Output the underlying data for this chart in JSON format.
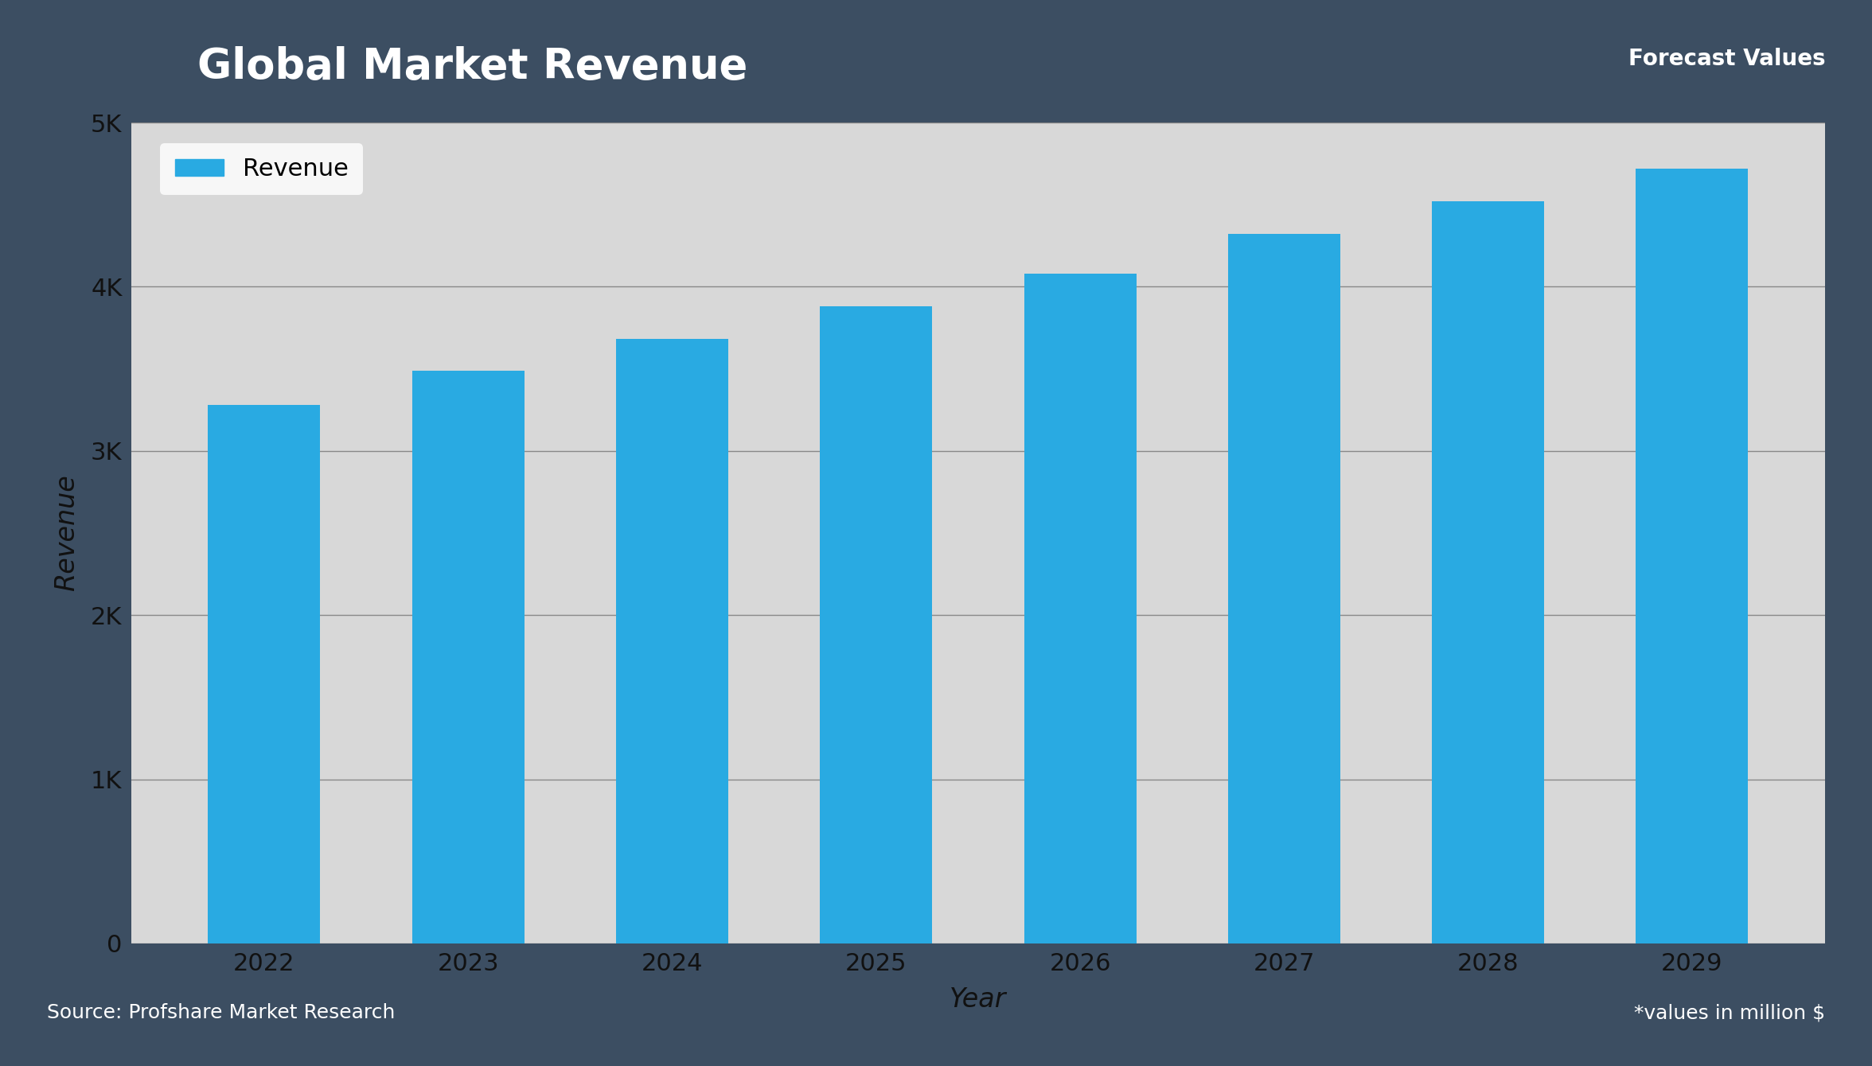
{
  "title": "Global Market Revenue",
  "xlabel": "Year",
  "ylabel": "Revenue",
  "years": [
    2022,
    2023,
    2024,
    2025,
    2026,
    2027,
    2028,
    2029
  ],
  "values": [
    3280,
    3490,
    3680,
    3880,
    4080,
    4320,
    4520,
    4720
  ],
  "bar_color": "#29aae2",
  "ylim": [
    0,
    5000
  ],
  "ytick_values": [
    0,
    1000,
    2000,
    3000,
    4000,
    5000
  ],
  "ytick_labels": [
    "0",
    "1K",
    "2K",
    "3K",
    "4K",
    "5K"
  ],
  "legend_label": "Revenue",
  "source_text": "Source: Profshare Market Research",
  "forecast_text": "*values in million $",
  "forecast_label": "Forecast Values",
  "plot_bg_color": "#d8d8d8",
  "outer_bg_color": "#3c4e62",
  "title_bg_color": "#5b7399",
  "title_text_color": "#ffffff",
  "axis_text_color": "#111111",
  "footer_text_color": "#ffffff",
  "grid_color": "#888888",
  "bar_width": 0.55
}
